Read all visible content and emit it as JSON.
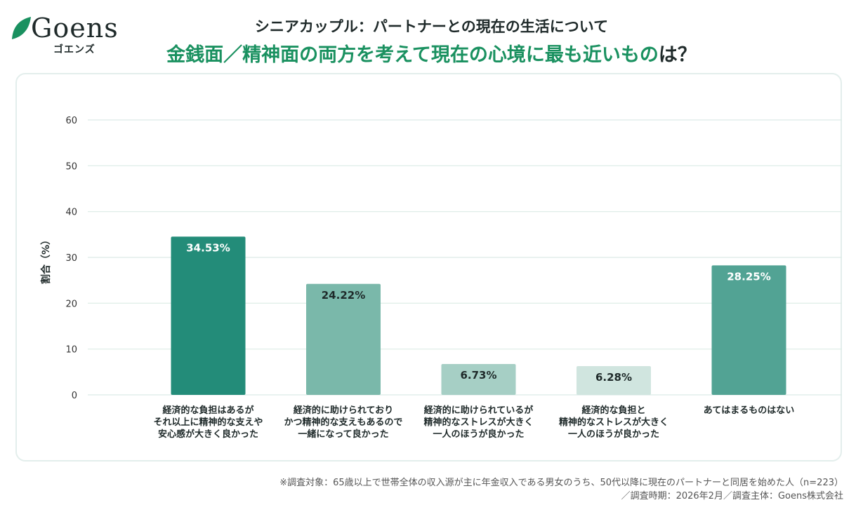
{
  "logo": {
    "word": "Goens",
    "kana": "ゴエンズ"
  },
  "header": {
    "subtitle": "シニアカップル：パートナーとの現在の生活について",
    "title_accent": "金銭面／精神面の両方を考えて現在の心境に最も近いもの",
    "title_rest": "は？"
  },
  "colors": {
    "accent": "#1a9160",
    "bars": [
      "#238c79",
      "#7ab8aa",
      "#a6cfc5",
      "#d0e5df",
      "#52a394"
    ],
    "grid": "#dcebe6"
  },
  "chart_data": {
    "type": "bar",
    "ylabel": "割合（%）",
    "xlabel": "",
    "ylim": [
      0,
      60
    ],
    "yticks": [
      0,
      10,
      20,
      30,
      40,
      50,
      60
    ],
    "categories": [
      [
        "経済的な負担はあるが",
        "それ以上に精神的な支えや",
        "安心感が大きく良かった"
      ],
      [
        "経済的に助けられており",
        "かつ精神的な支えもあるので",
        "一緒になって良かった"
      ],
      [
        "経済的に助けられているが",
        "精神的なストレスが大きく",
        "一人のほうが良かった"
      ],
      [
        "経済的な負担と",
        "精神的なストレスが大きく",
        "一人のほうが良かった"
      ],
      [
        "あてはまるものはない"
      ]
    ],
    "values": [
      34.53,
      24.22,
      6.73,
      6.28,
      28.25
    ],
    "data_labels": [
      "34.53%",
      "24.22%",
      "6.73%",
      "6.28%",
      "28.25%"
    ]
  },
  "notes": {
    "line1": "※調査対象：65歳以上で世帯全体の収入源が主に年金収入である男女のうち、50代以降に現在のパートナーと同居を始めた人（n=223）",
    "line2": "／調査時期：2026年2月／調査主体：Goens株式会社"
  }
}
